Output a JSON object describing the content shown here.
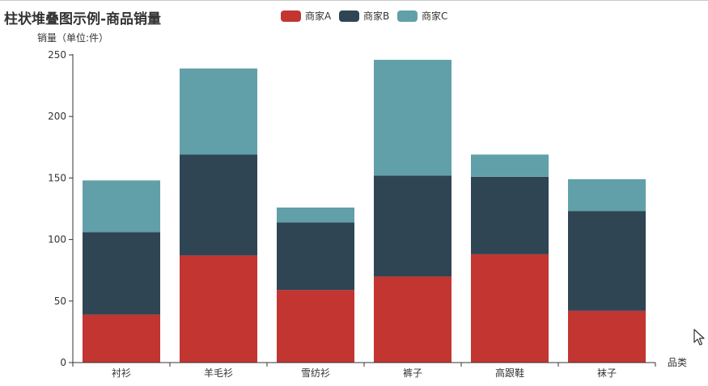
{
  "chart_data": {
    "type": "bar",
    "stacked": true,
    "title": "柱状堆叠图示例-商品销量",
    "xlabel": "品类",
    "ylabel": "销量（单位:件）",
    "categories": [
      "衬衫",
      "羊毛衫",
      "雪纺衫",
      "裤子",
      "高跟鞋",
      "袜子"
    ],
    "ylim": [
      0,
      250
    ],
    "yticks": [
      0,
      50,
      100,
      150,
      200,
      250
    ],
    "grid": false,
    "legend_position": "top",
    "series": [
      {
        "name": "商家A",
        "color": "#c23531",
        "values": [
          39,
          87,
          59,
          70,
          88,
          42
        ]
      },
      {
        "name": "商家B",
        "color": "#2f4554",
        "values": [
          67,
          82,
          55,
          82,
          63,
          81
        ]
      },
      {
        "name": "商家C",
        "color": "#61a0a8",
        "values": [
          42,
          70,
          12,
          94,
          18,
          26
        ]
      }
    ]
  }
}
